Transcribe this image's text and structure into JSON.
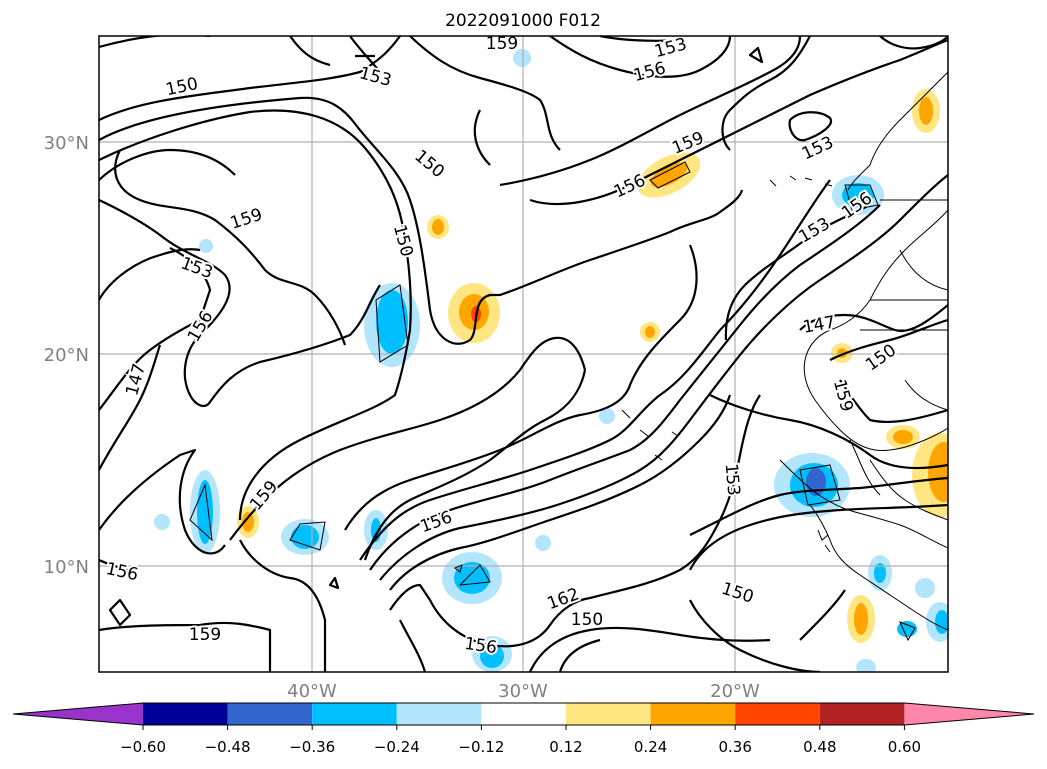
{
  "title": "2022091000 F012",
  "lat_ticks": [
    "30°N",
    "20°N",
    "10°N"
  ],
  "lon_ticks": [
    "40°W",
    "30°W",
    "20°W"
  ],
  "contour_labels": [
    "159",
    "153",
    "156",
    "150",
    "153",
    "159",
    "156",
    "150",
    "153",
    "156",
    "159",
    "153",
    "150",
    "153",
    "156",
    "147",
    "150",
    "147",
    "159",
    "153",
    "159",
    "156",
    "156",
    "162",
    "150",
    "150",
    "159",
    "156",
    "162",
    "162"
  ],
  "colorbar": {
    "ticks": [
      "−0.60",
      "−0.48",
      "−0.36",
      "−0.24",
      "−0.12",
      "0.12",
      "0.24",
      "0.36",
      "0.48",
      "0.60"
    ],
    "colors": [
      "#9933cc",
      "#000099",
      "#3366cc",
      "#00bfff",
      "#b3e5fc",
      "#ffffff",
      "#ffe680",
      "#ffa500",
      "#ff4500",
      "#b22222",
      "#ff88aa"
    ]
  }
}
